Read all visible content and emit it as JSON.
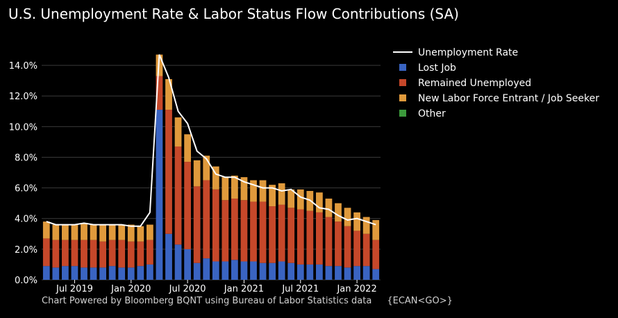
{
  "title": "U.S. Unemployment Rate & Labor Status Flow Contributions (SA)",
  "footer": {
    "source": "Chart Powered by Bloomberg BQNT using Bureau of Labor Statistics data",
    "code": "{ECAN<GO>}"
  },
  "colors": {
    "background": "#000000",
    "lost_job": "#3a64c2",
    "remained_unemployed": "#c6482a",
    "new_entrant": "#e09a3c",
    "other": "#3c9a3c",
    "rate_line": "#ffffff"
  },
  "chart_data": {
    "type": "bar",
    "stacked": true,
    "categories": [
      "2019-04",
      "2019-05",
      "2019-06",
      "2019-07",
      "2019-08",
      "2019-09",
      "2019-10",
      "2019-11",
      "2019-12",
      "2020-01",
      "2020-02",
      "2020-03",
      "2020-04",
      "2020-05",
      "2020-06",
      "2020-07",
      "2020-08",
      "2020-09",
      "2020-10",
      "2020-11",
      "2020-12",
      "2021-01",
      "2021-02",
      "2021-03",
      "2021-04",
      "2021-05",
      "2021-06",
      "2021-07",
      "2021-08",
      "2021-09",
      "2021-10",
      "2021-11",
      "2021-12",
      "2022-01",
      "2022-02",
      "2022-03"
    ],
    "x_ticks": [
      {
        "index": 3,
        "label": "Jul 2019"
      },
      {
        "index": 9,
        "label": "Jan 2020"
      },
      {
        "index": 15,
        "label": "Jul 2020"
      },
      {
        "index": 21,
        "label": "Jan 2021"
      },
      {
        "index": 27,
        "label": "Jul 2021"
      },
      {
        "index": 33,
        "label": "Jan 2022"
      }
    ],
    "y_ticks": [
      "0.0%",
      "2.0%",
      "4.0%",
      "6.0%",
      "8.0%",
      "10.0%",
      "12.0%",
      "14.0%"
    ],
    "ylim": [
      0,
      15
    ],
    "legend_position": "top-right",
    "legend": [
      {
        "label": "Unemployment Rate",
        "kind": "line"
      },
      {
        "label": "Lost Job",
        "kind": "box"
      },
      {
        "label": "Remained Unemployed",
        "kind": "box"
      },
      {
        "label": "New Labor Force Entrant / Job Seeker",
        "kind": "box"
      },
      {
        "label": "Other",
        "kind": "box"
      }
    ],
    "series": [
      {
        "name": "Lost Job",
        "values": [
          0.9,
          0.8,
          0.9,
          0.9,
          0.8,
          0.8,
          0.8,
          0.9,
          0.8,
          0.8,
          0.9,
          1.0,
          11.1,
          3.0,
          2.3,
          2.0,
          1.1,
          1.4,
          1.2,
          1.2,
          1.3,
          1.2,
          1.2,
          1.1,
          1.1,
          1.2,
          1.1,
          1.0,
          1.0,
          1.0,
          0.9,
          0.9,
          0.8,
          0.9,
          0.9,
          0.7
        ]
      },
      {
        "name": "Remained Unemployed",
        "values": [
          1.8,
          1.8,
          1.7,
          1.7,
          1.8,
          1.8,
          1.7,
          1.7,
          1.8,
          1.7,
          1.6,
          1.6,
          2.2,
          8.1,
          6.4,
          5.7,
          5.0,
          5.1,
          4.7,
          4.0,
          4.0,
          4.0,
          3.9,
          4.0,
          3.7,
          3.7,
          3.6,
          3.6,
          3.5,
          3.4,
          3.2,
          2.9,
          2.7,
          2.3,
          2.1,
          1.9
        ]
      },
      {
        "name": "New Labor Force Entrant / Job Seeker",
        "values": [
          1.1,
          1.0,
          1.0,
          1.0,
          1.1,
          1.0,
          1.1,
          1.0,
          1.0,
          1.1,
          1.0,
          1.0,
          1.4,
          2.0,
          1.9,
          1.8,
          1.7,
          1.6,
          1.5,
          1.5,
          1.5,
          1.5,
          1.4,
          1.4,
          1.4,
          1.4,
          1.2,
          1.3,
          1.3,
          1.3,
          1.2,
          1.2,
          1.2,
          1.2,
          1.1,
          1.3
        ]
      },
      {
        "name": "Other",
        "values": [
          0,
          0,
          0,
          0,
          0,
          0,
          0,
          0,
          0,
          0,
          0,
          0,
          0,
          0,
          0,
          0,
          0,
          0,
          0,
          0,
          0,
          0,
          0,
          0,
          0,
          0,
          0,
          0,
          0,
          0,
          0,
          0,
          0,
          0,
          0,
          0
        ]
      },
      {
        "name": "Unemployment Rate",
        "kind": "line",
        "values": [
          3.8,
          3.6,
          3.6,
          3.6,
          3.7,
          3.6,
          3.6,
          3.6,
          3.6,
          3.5,
          3.5,
          4.4,
          14.7,
          13.2,
          11.0,
          10.2,
          8.4,
          7.9,
          6.9,
          6.7,
          6.7,
          6.4,
          6.2,
          6.0,
          6.0,
          5.8,
          5.9,
          5.4,
          5.2,
          4.7,
          4.6,
          4.2,
          3.9,
          4.0,
          3.8,
          3.6
        ]
      }
    ]
  }
}
